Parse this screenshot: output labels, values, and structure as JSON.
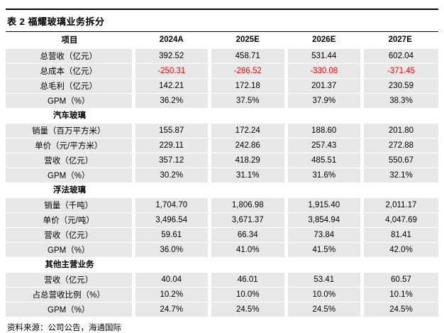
{
  "title": "表 2 福耀玻璃业务拆分",
  "source": "资料来源：公司公告，海通国际",
  "colors": {
    "row_background": "#e8e8e8",
    "negative_value": "#ff0000",
    "rule_line": "#000000"
  },
  "chart_data": {
    "type": "table",
    "title": "表 2 福耀玻璃业务拆分",
    "columns": [
      "项目",
      "2024A",
      "2025E",
      "2026E",
      "2027E"
    ],
    "rows": [
      {
        "type": "data",
        "label": "总营收（亿元）",
        "values": [
          "392.52",
          "458.71",
          "531.44",
          "602.04"
        ],
        "negative": false
      },
      {
        "type": "data",
        "label": "总成本（亿元）",
        "values": [
          "-250.31",
          "-286.52",
          "-330.08",
          "-371.45"
        ],
        "negative": true
      },
      {
        "type": "data",
        "label": "总毛利（亿元）",
        "values": [
          "142.21",
          "172.18",
          "201.37",
          "230.59"
        ],
        "negative": false
      },
      {
        "type": "data",
        "label": "GPM（%）",
        "values": [
          "36.2%",
          "37.5%",
          "37.9%",
          "38.3%"
        ],
        "negative": false
      },
      {
        "type": "section",
        "label": "汽车玻璃",
        "values": [
          "",
          "",
          "",
          ""
        ],
        "negative": false
      },
      {
        "type": "data",
        "label": "销量（百万平方米）",
        "values": [
          "155.87",
          "172.24",
          "188.60",
          "201.80"
        ],
        "negative": false
      },
      {
        "type": "data",
        "label": "单价（元/平方米）",
        "values": [
          "229.11",
          "242.86",
          "257.43",
          "272.88"
        ],
        "negative": false
      },
      {
        "type": "data",
        "label": "营收（亿元）",
        "values": [
          "357.12",
          "418.29",
          "485.51",
          "550.67"
        ],
        "negative": false
      },
      {
        "type": "data",
        "label": "GPM（%）",
        "values": [
          "30.2%",
          "31.1%",
          "31.6%",
          "32.1%"
        ],
        "negative": false
      },
      {
        "type": "section",
        "label": "浮法玻璃",
        "values": [
          "",
          "",
          "",
          ""
        ],
        "negative": false
      },
      {
        "type": "data",
        "label": "销量（千吨）",
        "values": [
          "1,704.70",
          "1,806.98",
          "1,915.40",
          "2,011.17"
        ],
        "negative": false
      },
      {
        "type": "data",
        "label": "单价（元/吨）",
        "values": [
          "3,496.54",
          "3,671.37",
          "3,854.94",
          "4,047.69"
        ],
        "negative": false
      },
      {
        "type": "data",
        "label": "营收（亿元）",
        "values": [
          "59.61",
          "66.34",
          "73.84",
          "81.41"
        ],
        "negative": false
      },
      {
        "type": "data",
        "label": "GPM（%）",
        "values": [
          "36.0%",
          "41.0%",
          "41.5%",
          "42.0%"
        ],
        "negative": false
      },
      {
        "type": "section",
        "label": "其他主营业务",
        "values": [
          "",
          "",
          "",
          ""
        ],
        "negative": false
      },
      {
        "type": "data",
        "label": "营收（亿元）",
        "values": [
          "40.04",
          "46.01",
          "53.41",
          "60.57"
        ],
        "negative": false
      },
      {
        "type": "data",
        "label": "占总营收比例（%）",
        "values": [
          "10.2%",
          "10.0%",
          "10.0%",
          "10.1%"
        ],
        "negative": false
      },
      {
        "type": "data",
        "label": "GPM（%）",
        "values": [
          "24.7%",
          "24.5%",
          "24.5%",
          "24.5%"
        ],
        "negative": false
      }
    ]
  }
}
